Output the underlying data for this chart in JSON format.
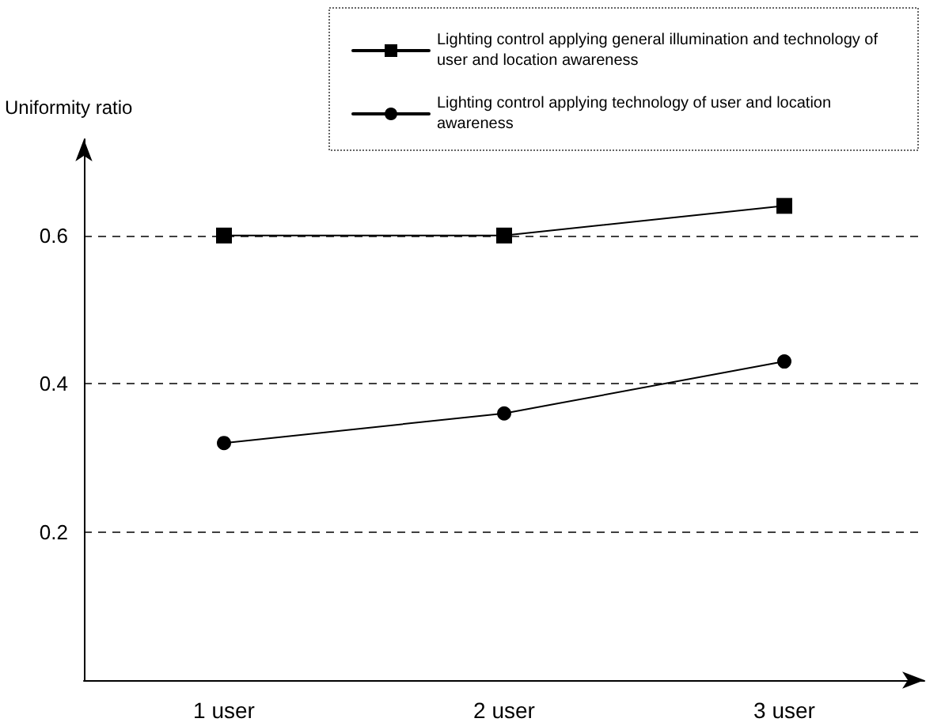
{
  "chart_data": {
    "type": "line",
    "ylabel": "Uniformity ratio",
    "categories": [
      "1 user",
      "2 user",
      "3 user"
    ],
    "series": [
      {
        "name": "Lighting control applying general illumination and technology of user and location awareness",
        "color": "#000000",
        "marker": "square",
        "values": [
          0.6,
          0.6,
          0.64
        ]
      },
      {
        "name": "Lighting control applying technology of user and location awareness",
        "color": "#000000",
        "marker": "circle",
        "values": [
          0.32,
          0.36,
          0.43
        ]
      }
    ],
    "ylim": [
      0,
      0.73
    ],
    "yticks": [
      0.2,
      0.4,
      0.6
    ],
    "grid": "y",
    "legend": "top right",
    "line_style": "solid"
  }
}
